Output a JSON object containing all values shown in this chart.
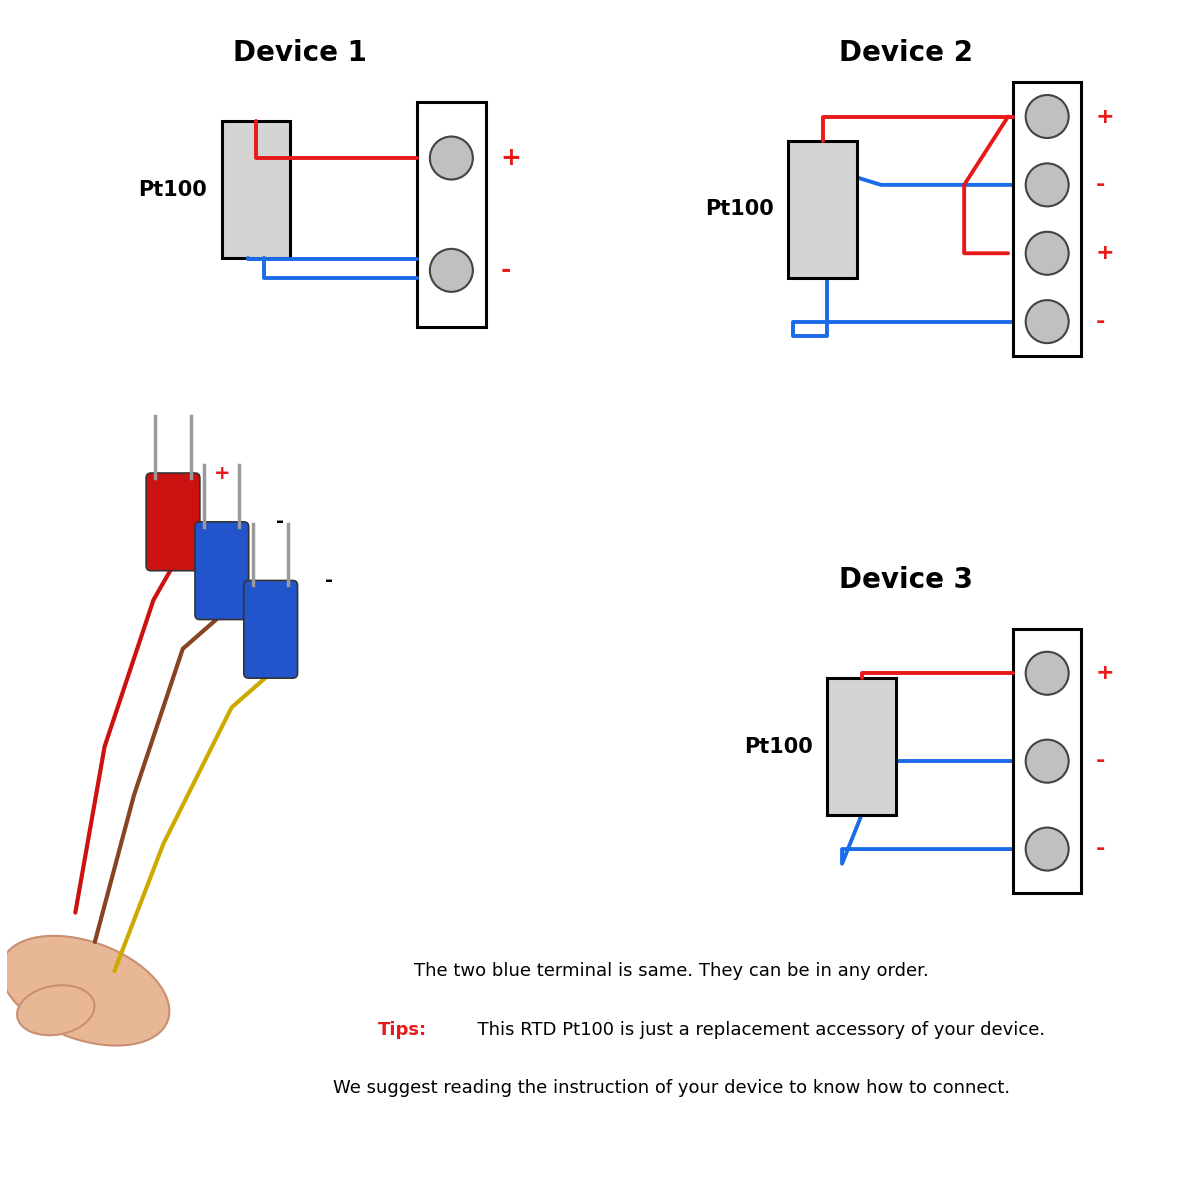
{
  "bg_color": "#ffffff",
  "title_color": "#000000",
  "red_color": "#e81919",
  "blue_color": "#1a6be8",
  "black_color": "#000000",
  "gray_color": "#c0c0c0",
  "sensor_fill": "#d4d4d4",
  "device1_title": "Device 1",
  "device2_title": "Device 2",
  "device3_title": "Device 3",
  "pt100_label": "Pt100",
  "text_note": "The two blue terminal is same. They can be in any order.",
  "tips_label": "Tips:",
  "tips_text": "  This RTD Pt100 is just a replacement accessory of your device.",
  "tips_text2": "We suggest reading the instruction of your device to know how to connect.",
  "plus_label": "+",
  "minus_label": "-"
}
